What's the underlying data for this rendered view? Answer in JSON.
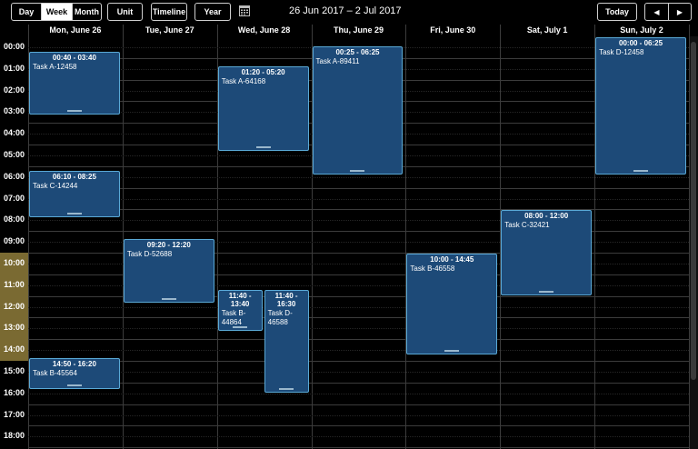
{
  "toolbar": {
    "view_day": "Day",
    "view_week": "Week",
    "view_month": "Month",
    "unit": "Unit",
    "timeline": "Timeline",
    "year": "Year",
    "date_range": "26 Jun 2017 – 2 Jul 2017",
    "today": "Today",
    "prev_glyph": "◀",
    "next_glyph": "▶",
    "active_view": "Week"
  },
  "days": [
    "Mon, June 26",
    "Tue, June 27",
    "Wed, June 28",
    "Thu, June 29",
    "Fri, June 30",
    "Sat, July 1",
    "Sun, July 2"
  ],
  "hours": [
    "00:00",
    "01:00",
    "02:00",
    "03:00",
    "04:00",
    "05:00",
    "06:00",
    "07:00",
    "08:00",
    "09:00",
    "10:00",
    "11:00",
    "12:00",
    "13:00",
    "14:00",
    "15:00",
    "16:00",
    "17:00",
    "18:00"
  ],
  "work_hours": [
    "10:00",
    "11:00",
    "12:00",
    "13:00",
    "14:00"
  ],
  "colors": {
    "event_bg": "#1d4a78",
    "event_border": "#5aa9d6",
    "work_hour_bg": "#7a6a32",
    "background": "#000000"
  },
  "events": [
    {
      "day": 0,
      "time": "00:40 - 03:40",
      "label": "Task A-12458"
    },
    {
      "day": 0,
      "time": "06:10 - 08:25",
      "label": "Task C-14244"
    },
    {
      "day": 0,
      "time": "14:50 - 16:20",
      "label": "Task B-45564"
    },
    {
      "day": 1,
      "time": "09:20 - 12:20",
      "label": "Task D-52688"
    },
    {
      "day": 2,
      "time": "01:20 - 05:20",
      "label": "Task A-64168"
    },
    {
      "day": 2,
      "time": "11:40 - 13:40",
      "label": "Task B-44864"
    },
    {
      "day": 2,
      "time": "11:40 - 16:30",
      "label": "Task D-46588"
    },
    {
      "day": 3,
      "time": "00:25 - 06:25",
      "label": "Task A-89411"
    },
    {
      "day": 4,
      "time": "10:00 - 14:45",
      "label": "Task B-46558"
    },
    {
      "day": 5,
      "time": "08:00 - 12:00",
      "label": "Task C-32421"
    },
    {
      "day": 6,
      "time": "00:00 - 06:25",
      "label": "Task D-12458"
    }
  ]
}
